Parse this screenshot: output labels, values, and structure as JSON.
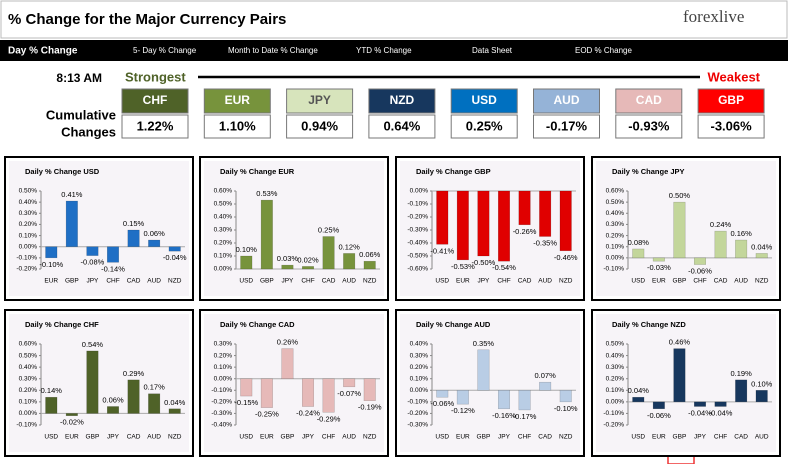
{
  "header": {
    "title": "% Change for the Major Currency Pairs",
    "logo": "forexlive"
  },
  "tabs": [
    "Day % Change",
    "5- Day % Change",
    "Month to Date % Change",
    "YTD % Change",
    "Data Sheet",
    "EOD % Change"
  ],
  "time": "8:13 AM",
  "strongest": "Strongest",
  "weakest": "Weakest",
  "cumulative": {
    "label_lines": [
      "Cumulative",
      "Changes"
    ],
    "tiles": [
      {
        "currency": "CHF",
        "change": "1.22%",
        "color": "#4f6228"
      },
      {
        "currency": "EUR",
        "change": "1.10%",
        "color": "#77933c"
      },
      {
        "currency": "JPY",
        "change": "0.94%",
        "color": "#d7e4bc"
      },
      {
        "currency": "NZD",
        "change": "0.64%",
        "color": "#17375e"
      },
      {
        "currency": "USD",
        "change": "0.25%",
        "color": "#0070c0"
      },
      {
        "currency": "AUD",
        "change": "-0.17%",
        "color": "#95b3d7"
      },
      {
        "currency": "CAD",
        "change": "-0.93%",
        "color": "#e6b9b8"
      },
      {
        "currency": "GBP",
        "change": "-3.06%",
        "color": "#ff0000"
      }
    ]
  },
  "chart_data": [
    {
      "type": "bar",
      "title": "Daily % Change USD",
      "color": "#1f6fc5",
      "categories": [
        "EUR",
        "GBP",
        "JPY",
        "CHF",
        "CAD",
        "AUD",
        "NZD"
      ],
      "values": [
        -0.1,
        0.41,
        -0.08,
        -0.14,
        0.15,
        0.06,
        -0.04
      ],
      "value_labels": [
        "-0.10%",
        "0.41%",
        "-0.08%",
        "-0.14%",
        "0.15%",
        "0.06%",
        "-0.04%"
      ],
      "ylim": [
        -0.2,
        0.5
      ],
      "yticks": [
        {
          "value": 0.5,
          "label": "0.50%"
        },
        {
          "value": 0.4,
          "label": "0.40%"
        },
        {
          "value": 0.3,
          "label": "0.30%"
        },
        {
          "value": 0.2,
          "label": "0.20%"
        },
        {
          "value": 0.1,
          "label": "0.10%"
        },
        {
          "value": 0,
          "label": "0.00%"
        },
        {
          "value": -0.1,
          "label": "-0.10%"
        },
        {
          "value": -0.2,
          "label": "-0.20%"
        }
      ]
    },
    {
      "type": "bar",
      "title": "Daily % Change EUR",
      "color": "#77933c",
      "categories": [
        "USD",
        "GBP",
        "JPY",
        "CHF",
        "CAD",
        "AUD",
        "NZD"
      ],
      "values": [
        0.1,
        0.53,
        0.03,
        0.02,
        0.25,
        0.12,
        0.06
      ],
      "value_labels": [
        "0.10%",
        "0.53%",
        "0.03%",
        "0.02%",
        "0.25%",
        "0.12%",
        "0.06%"
      ],
      "ylim": [
        0,
        0.6
      ],
      "yticks": [
        {
          "value": 0.6,
          "label": "0.60%"
        },
        {
          "value": 0.5,
          "label": "0.50%"
        },
        {
          "value": 0.4,
          "label": "0.40%"
        },
        {
          "value": 0.3,
          "label": "0.30%"
        },
        {
          "value": 0.2,
          "label": "0.20%"
        },
        {
          "value": 0.1,
          "label": "0.10%"
        },
        {
          "value": 0,
          "label": "0.00%"
        }
      ]
    },
    {
      "type": "bar",
      "title": "Daily % Change GBP",
      "color": "#e00000",
      "categories": [
        "USD",
        "EUR",
        "JPY",
        "CHF",
        "CAD",
        "AUD",
        "NZD"
      ],
      "values": [
        -0.41,
        -0.53,
        -0.5,
        -0.54,
        -0.26,
        -0.35,
        -0.46
      ],
      "value_labels": [
        "-0.41%",
        "-0.53%",
        "-0.50%",
        "-0.54%",
        "-0.26%",
        "-0.35%",
        "-0.46%"
      ],
      "ylim": [
        -0.6,
        0
      ],
      "yticks": [
        {
          "value": 0,
          "label": "0.00%"
        },
        {
          "value": -0.1,
          "label": "-0.10%"
        },
        {
          "value": -0.2,
          "label": "-0.20%"
        },
        {
          "value": -0.3,
          "label": "-0.30%"
        },
        {
          "value": -0.4,
          "label": "-0.40%"
        },
        {
          "value": -0.5,
          "label": "-0.50%"
        },
        {
          "value": -0.6,
          "label": "-0.60%"
        }
      ]
    },
    {
      "type": "bar",
      "title": "Daily % Change JPY",
      "color": "#c3d69b",
      "categories": [
        "USD",
        "EUR",
        "GBP",
        "CHF",
        "CAD",
        "AUD",
        "NZD"
      ],
      "values": [
        0.08,
        -0.03,
        0.5,
        -0.06,
        0.24,
        0.16,
        0.04
      ],
      "value_labels": [
        "0.08%",
        "-0.03%",
        "0.50%",
        "-0.06%",
        "0.24%",
        "0.16%",
        "0.04%"
      ],
      "ylim": [
        -0.1,
        0.6
      ],
      "yticks": [
        {
          "value": 0.6,
          "label": "0.60%"
        },
        {
          "value": 0.5,
          "label": "0.50%"
        },
        {
          "value": 0.4,
          "label": "0.40%"
        },
        {
          "value": 0.3,
          "label": "0.30%"
        },
        {
          "value": 0.2,
          "label": "0.20%"
        },
        {
          "value": 0.1,
          "label": "0.10%"
        },
        {
          "value": 0,
          "label": "0.00%"
        },
        {
          "value": -0.1,
          "label": "-0.10%"
        }
      ]
    },
    {
      "type": "bar",
      "title": "Daily % Change CHF",
      "color": "#4f6228",
      "categories": [
        "USD",
        "EUR",
        "GBP",
        "JPY",
        "CAD",
        "AUD",
        "NZD"
      ],
      "values": [
        0.14,
        -0.02,
        0.54,
        0.06,
        0.29,
        0.17,
        0.04
      ],
      "value_labels": [
        "0.14%",
        "-0.02%",
        "0.54%",
        "0.06%",
        "0.29%",
        "0.17%",
        "0.04%"
      ],
      "ylim": [
        -0.1,
        0.6
      ],
      "yticks": [
        {
          "value": 0.6,
          "label": "0.60%"
        },
        {
          "value": 0.5,
          "label": "0.50%"
        },
        {
          "value": 0.4,
          "label": "0.40%"
        },
        {
          "value": 0.3,
          "label": "0.30%"
        },
        {
          "value": 0.2,
          "label": "0.20%"
        },
        {
          "value": 0.1,
          "label": "0.10%"
        },
        {
          "value": 0,
          "label": "0.00%"
        },
        {
          "value": -0.1,
          "label": "-0.10%"
        }
      ]
    },
    {
      "type": "bar",
      "title": "Daily % Change CAD",
      "color": "#e6b9b8",
      "categories": [
        "USD",
        "EUR",
        "GBP",
        "JPY",
        "CHF",
        "AUD",
        "NZD"
      ],
      "values": [
        -0.15,
        -0.25,
        0.26,
        -0.24,
        -0.29,
        -0.07,
        -0.19
      ],
      "value_labels": [
        "-0.15%",
        "-0.25%",
        "0.26%",
        "-0.24%",
        "-0.29%",
        "-0.07%",
        "-0.19%"
      ],
      "ylim": [
        -0.4,
        0.3
      ],
      "yticks": [
        {
          "value": 0.3,
          "label": "0.30%"
        },
        {
          "value": 0.2,
          "label": "0.20%"
        },
        {
          "value": 0.1,
          "label": "0.10%"
        },
        {
          "value": 0,
          "label": "0.00%"
        },
        {
          "value": -0.1,
          "label": "-0.10%"
        },
        {
          "value": -0.2,
          "label": "-0.20%"
        },
        {
          "value": -0.3,
          "label": "-0.30%"
        },
        {
          "value": -0.4,
          "label": "-0.40%"
        }
      ]
    },
    {
      "type": "bar",
      "title": "Daily % Change AUD",
      "color": "#b9cde5",
      "categories": [
        "USD",
        "EUR",
        "GBP",
        "JPY",
        "CHF",
        "CAD",
        "NZD"
      ],
      "values": [
        -0.06,
        -0.12,
        0.35,
        -0.16,
        -0.17,
        0.07,
        -0.1
      ],
      "value_labels": [
        "-0.06%",
        "-0.12%",
        "0.35%",
        "-0.16%",
        "-0.17%",
        "0.07%",
        "-0.10%"
      ],
      "ylim": [
        -0.3,
        0.4
      ],
      "yticks": [
        {
          "value": 0.4,
          "label": "0.40%"
        },
        {
          "value": 0.3,
          "label": "0.30%"
        },
        {
          "value": 0.2,
          "label": "0.20%"
        },
        {
          "value": 0.1,
          "label": "0.10%"
        },
        {
          "value": 0,
          "label": "0.00%"
        },
        {
          "value": -0.1,
          "label": "-0.10%"
        },
        {
          "value": -0.2,
          "label": "-0.20%"
        },
        {
          "value": -0.3,
          "label": "-0.30%"
        }
      ]
    },
    {
      "type": "bar",
      "title": "Daily % Change NZD",
      "color": "#17375e",
      "categories": [
        "USD",
        "EUR",
        "GBP",
        "JPY",
        "CHF",
        "CAD",
        "AUD"
      ],
      "values": [
        0.04,
        -0.06,
        0.46,
        -0.04,
        -0.04,
        0.19,
        0.1
      ],
      "value_labels": [
        "0.04%",
        "-0.06%",
        "0.46%",
        "-0.04%",
        "-0.04%",
        "0.19%",
        "0.10%"
      ],
      "ylim": [
        -0.2,
        0.5
      ],
      "yticks": [
        {
          "value": 0.5,
          "label": "0.50%"
        },
        {
          "value": 0.4,
          "label": "0.40%"
        },
        {
          "value": 0.3,
          "label": "0.30%"
        },
        {
          "value": 0.2,
          "label": "0.20%"
        },
        {
          "value": 0.1,
          "label": "0.10%"
        },
        {
          "value": 0,
          "label": "0.00%"
        },
        {
          "value": -0.1,
          "label": "-0.10%"
        },
        {
          "value": -0.2,
          "label": "-0.20%"
        }
      ]
    }
  ]
}
